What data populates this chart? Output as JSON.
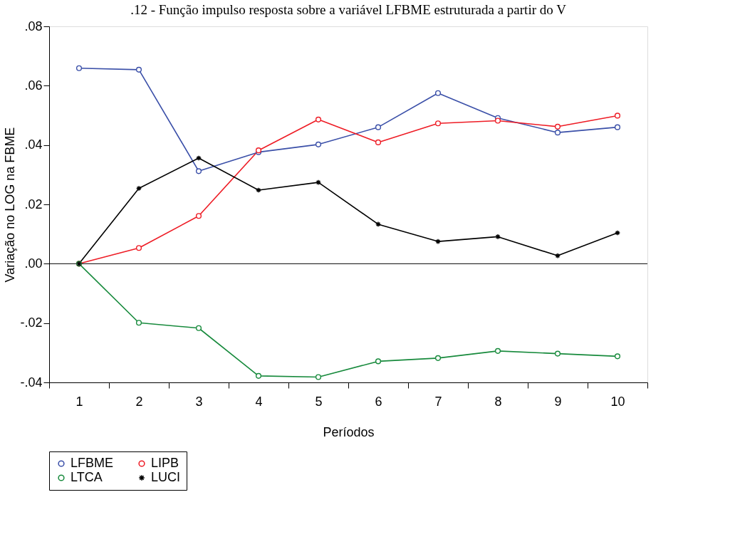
{
  "chart_data": {
    "type": "line",
    "title": ".12 - Função impulso resposta sobre a variável LFBME estruturada a partir do V",
    "xlabel": "Períodos",
    "ylabel": "Variação no LOG na FBME",
    "categories": [
      "1",
      "2",
      "3",
      "4",
      "5",
      "6",
      "7",
      "8",
      "9",
      "10"
    ],
    "series": [
      {
        "name": "LFBME",
        "color": "#3a4fa8",
        "marker": "circle",
        "values": [
          0.0659,
          0.0654,
          0.0312,
          0.0376,
          0.0402,
          0.046,
          0.0575,
          0.0491,
          0.0442,
          0.046
        ]
      },
      {
        "name": "LIPB",
        "color": "#ee1c25",
        "marker": "circle",
        "values": [
          0,
          0.0053,
          0.0161,
          0.0382,
          0.0486,
          0.0409,
          0.0473,
          0.0482,
          0.0462,
          0.0499
        ]
      },
      {
        "name": "LTCA",
        "color": "#178a3c",
        "marker": "circle",
        "values": [
          0,
          -0.0199,
          -0.0217,
          -0.0378,
          -0.0382,
          -0.0329,
          -0.0318,
          -0.0294,
          -0.0303,
          -0.0312
        ]
      },
      {
        "name": "LUCI",
        "color": "#000000",
        "marker": "cross",
        "values": [
          0,
          0.0254,
          0.0356,
          0.0248,
          0.0274,
          0.0133,
          0.0075,
          0.0091,
          0.0027,
          0.0104
        ]
      }
    ],
    "ylim": [
      -0.04,
      0.08
    ],
    "yticks": [
      {
        "value": -0.04,
        "label": "-.04"
      },
      {
        "value": -0.02,
        "label": "-.02"
      },
      {
        "value": 0,
        "label": ".00"
      },
      {
        "value": 0.02,
        "label": ".02"
      },
      {
        "value": 0.04,
        "label": ".04"
      },
      {
        "value": 0.06,
        "label": ".06"
      },
      {
        "value": 0.08,
        "label": ".08"
      }
    ],
    "ref_lines": [
      {
        "axis": "y",
        "value": 0,
        "color": "#000000"
      }
    ],
    "grid": false,
    "legend": "bottom"
  }
}
